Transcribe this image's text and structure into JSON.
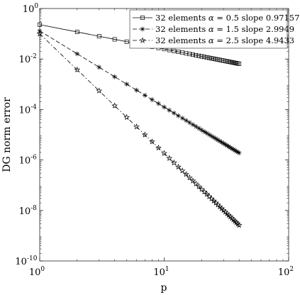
{
  "chart_data": {
    "type": "line",
    "xlabel": "p",
    "ylabel": "DG norm error",
    "xscale": "log",
    "yscale": "log",
    "xlim": [
      1,
      100
    ],
    "ylim": [
      1e-10,
      1
    ],
    "grid": false,
    "legend_position": "top-right",
    "x_ticks": [
      {
        "value": 1,
        "label": "10",
        "exp": "0"
      },
      {
        "value": 10,
        "label": "10",
        "exp": "1"
      },
      {
        "value": 100,
        "label": "10",
        "exp": "2"
      }
    ],
    "y_ticks": [
      {
        "value": 1e-10,
        "label": "10",
        "exp": "-10"
      },
      {
        "value": 1e-08,
        "label": "10",
        "exp": "-8"
      },
      {
        "value": 1e-06,
        "label": "10",
        "exp": "-6"
      },
      {
        "value": 0.0001,
        "label": "10",
        "exp": "-4"
      },
      {
        "value": 0.01,
        "label": "10",
        "exp": "-2"
      },
      {
        "value": 1,
        "label": "10",
        "exp": "0"
      }
    ],
    "x": [
      1,
      2,
      3,
      4,
      5,
      6,
      7,
      8,
      9,
      10,
      11,
      12,
      13,
      14,
      15,
      16,
      17,
      18,
      19,
      20,
      21,
      22,
      23,
      24,
      25,
      26,
      27,
      28,
      29,
      30,
      31,
      32,
      33,
      34,
      35,
      36,
      37,
      38,
      39,
      40
    ],
    "series": [
      {
        "name": "32 elements α = 0.5 slope 0.97157",
        "legend_prefix": "32 elements ",
        "legend_alpha": "α",
        "legend_suffix": " = 0.5 slope 0.97157",
        "marker": "square",
        "dash": "solid",
        "y_first": 0.23,
        "y_last": 0.0065
      },
      {
        "name": "32 elements α = 1.5 slope 2.9949",
        "legend_prefix": "32 elements ",
        "legend_alpha": "α",
        "legend_suffix": " = 1.5 slope 2.9949",
        "marker": "asterisk",
        "dash": "dashed",
        "y_first": 0.13,
        "y_last": 1.9e-06
      },
      {
        "name": "32 elements α = 2.5 slope 4.9433",
        "legend_prefix": "32 elements ",
        "legend_alpha": "α",
        "legend_suffix": " = 2.5 slope 4.9433",
        "marker": "pentagram",
        "dash": "dashdot",
        "y_first": 0.1,
        "y_last": 2.6e-09
      }
    ]
  }
}
